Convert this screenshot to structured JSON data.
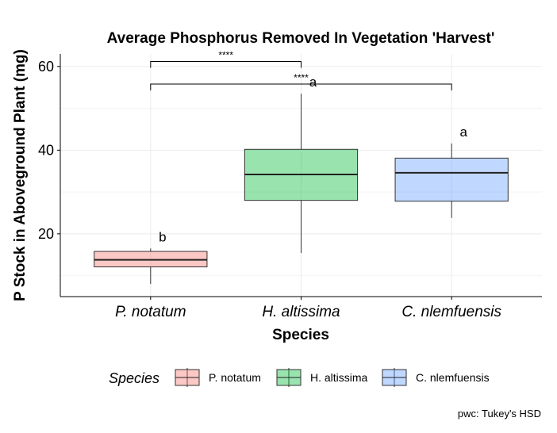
{
  "chart_data": {
    "type": "boxplot",
    "title": "Average Phosphorus Removed In Vegetation 'Harvest'",
    "xlabel": "Species",
    "ylabel": "P Stock in Aboveground Plant (mg)",
    "ylim": [
      5,
      63
    ],
    "yticks": [
      20,
      40,
      60
    ],
    "grid": true,
    "categories": [
      "P. notatum",
      "H. altissima",
      "C. nlemfuensis"
    ],
    "boxes": [
      {
        "category": "P. notatum",
        "min": 8.0,
        "q1": 12.1,
        "median": 13.8,
        "q3": 15.8,
        "max": 16.5,
        "color": "#F8766D",
        "letter": "b"
      },
      {
        "category": "H. altissima",
        "min": 15.4,
        "q1": 28.0,
        "median": 34.2,
        "q3": 40.2,
        "max": 53.5,
        "color": "#00BA38",
        "letter": "a"
      },
      {
        "category": "C. nlemfuensis",
        "min": 23.8,
        "q1": 27.8,
        "median": 34.6,
        "q3": 38.1,
        "max": 41.6,
        "color": "#619CFF",
        "letter": "a"
      }
    ],
    "comparisons": [
      {
        "from": "P. notatum",
        "to": "H. altissima",
        "y": 61.2,
        "label": "****"
      },
      {
        "from": "P. notatum",
        "to": "C. nlemfuensis",
        "y": 55.8,
        "label": "****"
      }
    ],
    "legend": {
      "title": "Species",
      "position": "bottom",
      "items": [
        "P. notatum",
        "H. altissima",
        "C. nlemfuensis"
      ]
    },
    "caption": "pwc: Tukey's HSD"
  }
}
